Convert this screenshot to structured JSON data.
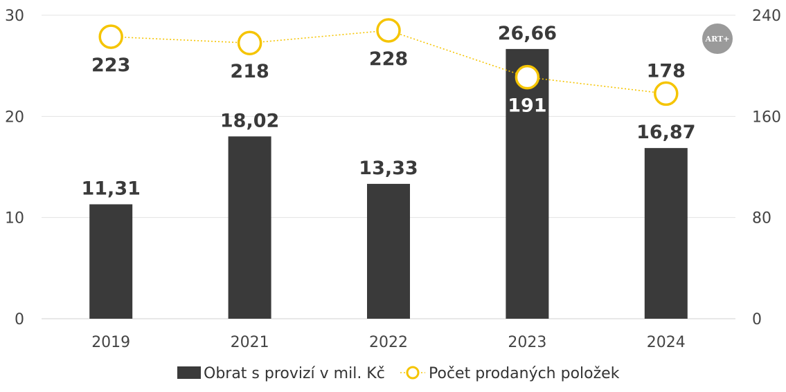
{
  "chart_data": {
    "type": "bar",
    "categories": [
      "2019",
      "2021",
      "2022",
      "2023",
      "2024"
    ],
    "series": [
      {
        "name": "Obrat s provizí v mil. Kč",
        "type": "bar",
        "axis": "left",
        "values": [
          11.31,
          18.02,
          13.33,
          26.66,
          16.87
        ],
        "labels": [
          "11,31",
          "18,02",
          "13,33",
          "26,66",
          "16,87"
        ],
        "color": "#3a3a3a"
      },
      {
        "name": "Počet prodaných položek",
        "type": "line",
        "axis": "right",
        "values": [
          223,
          218,
          228,
          191,
          178
        ],
        "labels": [
          "223",
          "218",
          "228",
          "191",
          "178"
        ],
        "color": "#f5c400"
      }
    ],
    "y_left": {
      "range": [
        0,
        30
      ],
      "ticks": [
        "0",
        "10",
        "20",
        "30"
      ]
    },
    "y_right": {
      "range": [
        0,
        240
      ],
      "ticks": [
        "0",
        "80",
        "160",
        "240"
      ]
    },
    "grid": true,
    "legend": "bottom",
    "title": "",
    "xlabel": "",
    "ylabel": ""
  },
  "logo": {
    "text": "ART+",
    "color": "#9a9a9a"
  }
}
